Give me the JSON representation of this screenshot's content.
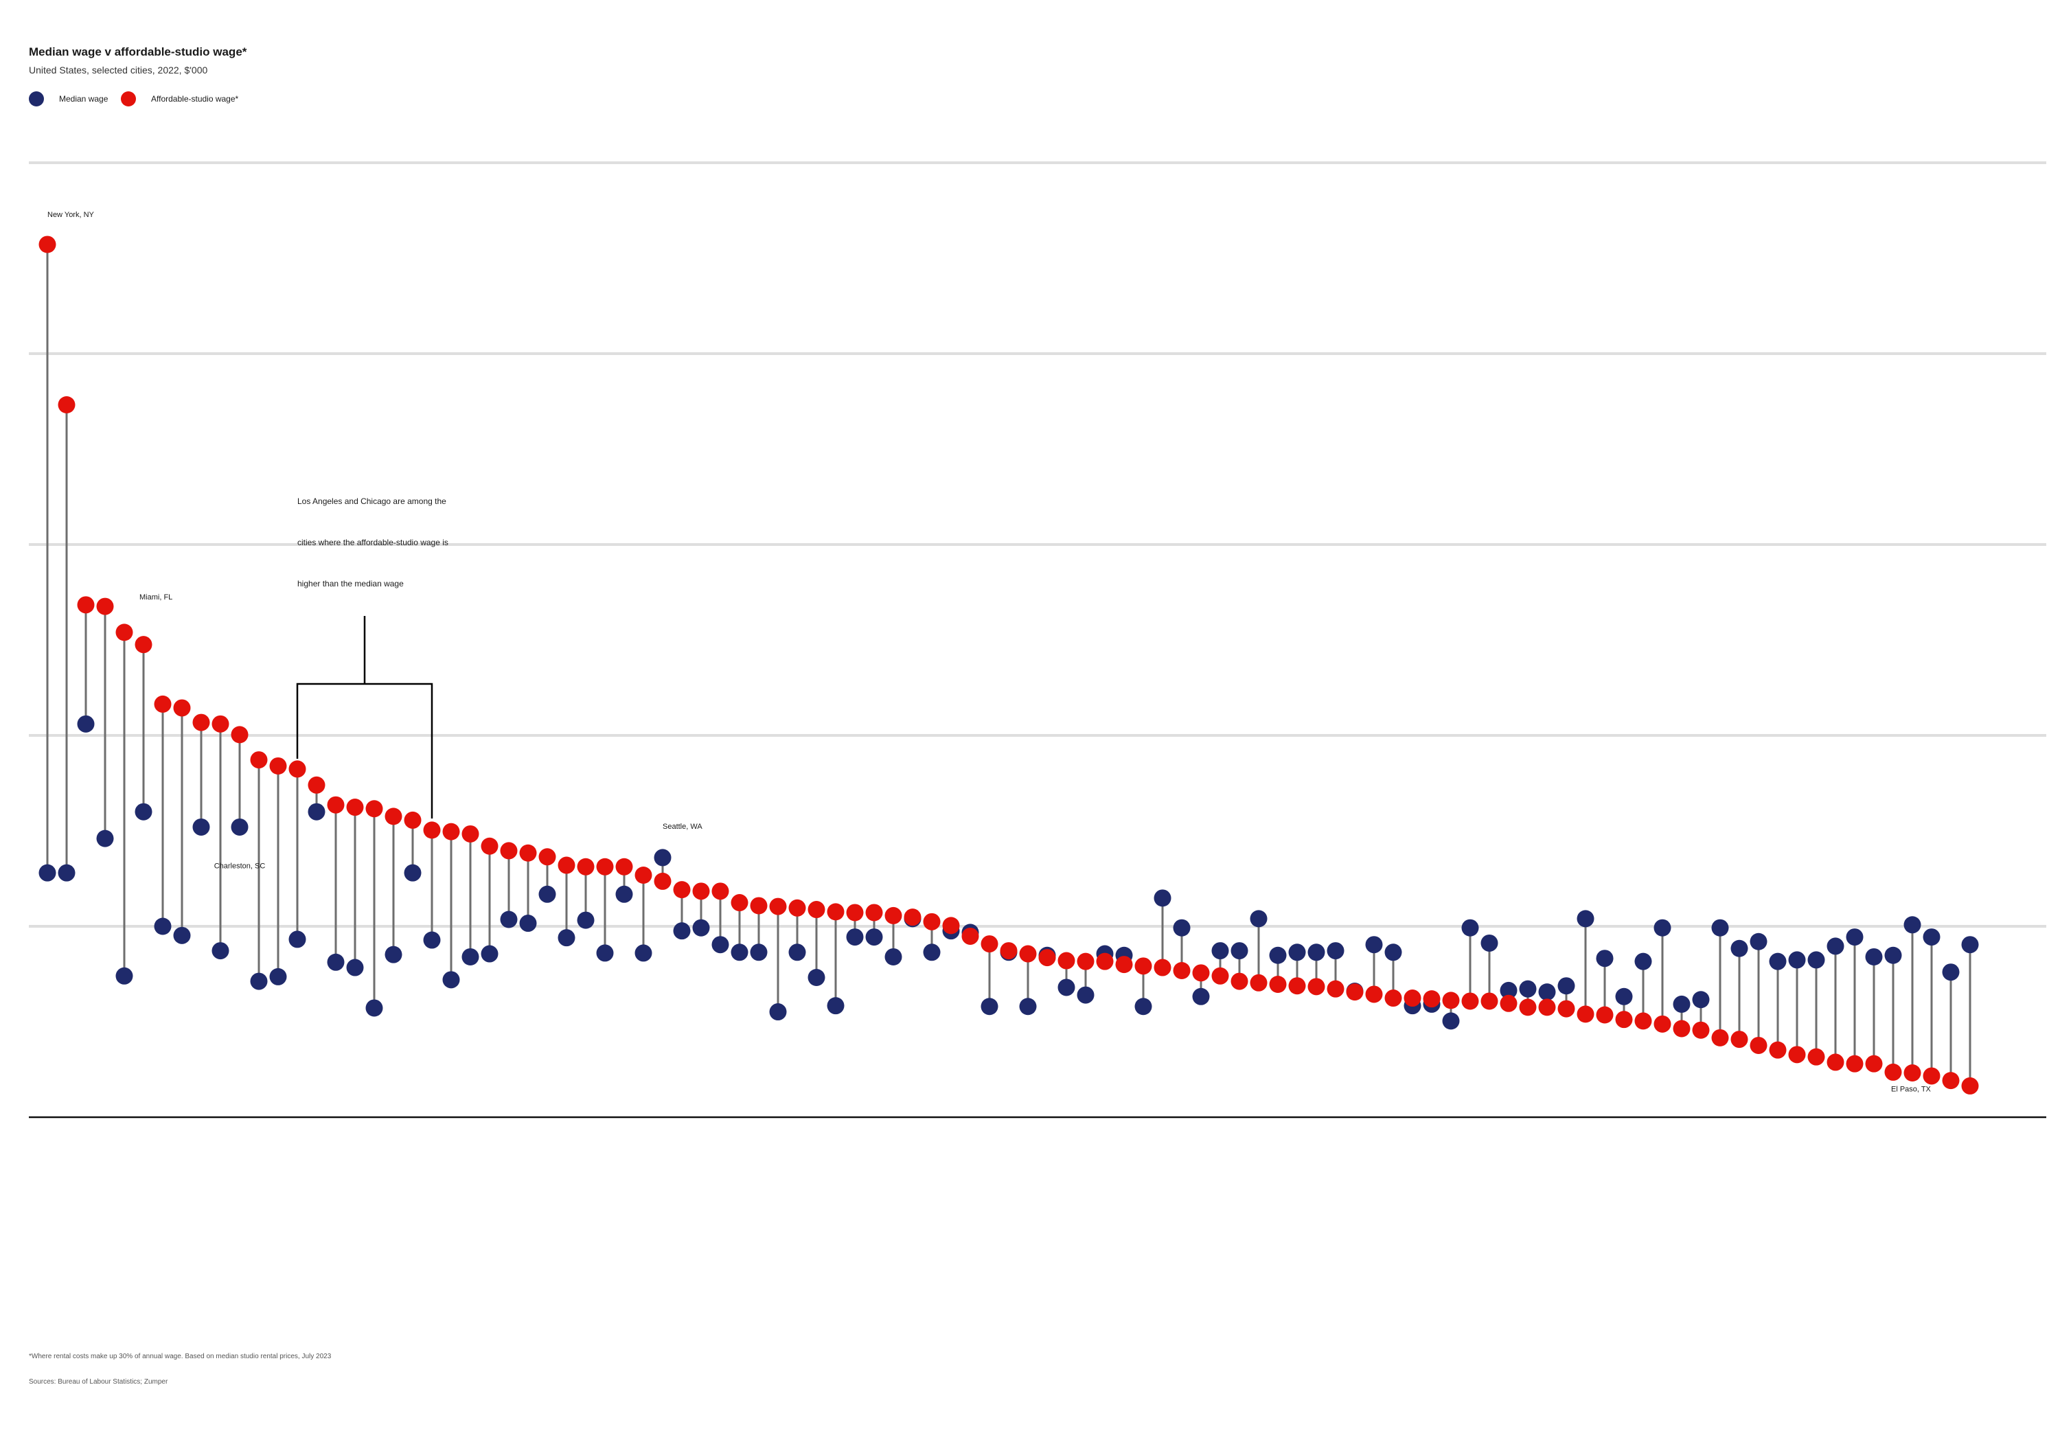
{
  "header": {
    "title": "Median wage v affordable-studio wage*",
    "subtitle": "United States, selected cities, 2022, $'000"
  },
  "legend": {
    "median": "Median wage",
    "affordable": "Affordable-studio wage*"
  },
  "colors": {
    "median": "#1f2a6b",
    "affordable": "#e3120b",
    "stem": "#6e6e6e",
    "grid": "#dedede",
    "baseline": "#111111"
  },
  "annotation": {
    "lines": [
      "Los Angeles and Chicago are among the",
      "cities where the affordable-studio wage is",
      "higher than the median wage"
    ]
  },
  "footnotes": {
    "note": "*Where rental costs make up 30% of annual wage. Based on median studio   rental prices, July 2023",
    "sources": "Sources: Bureau of Labour Statistics; Zumper"
  },
  "chart_data": {
    "type": "dot-plot",
    "y_gridlines": [
      0,
      25,
      50,
      75,
      100,
      125
    ],
    "ylim": [
      0,
      125
    ],
    "city_labels": [
      {
        "index": 0,
        "name": "New York, NY",
        "anchor": "affordable"
      },
      {
        "index": 4,
        "name": "Miami, FL",
        "anchor": "affordable"
      },
      {
        "index": 10,
        "name": "Charleston, SC",
        "anchor": "median"
      },
      {
        "index": 32,
        "name": "Seattle, WA",
        "anchor": "median"
      },
      {
        "index": 100,
        "name": "El Paso, TX",
        "anchor": "affordable"
      }
    ],
    "median_wage": [
      32.0,
      32.0,
      51.5,
      36.5,
      18.5,
      40.0,
      25.0,
      23.8,
      38.0,
      21.8,
      38.0,
      17.8,
      18.4,
      23.3,
      40.0,
      20.3,
      19.6,
      14.3,
      21.3,
      32.0,
      23.2,
      18.0,
      21.0,
      21.4,
      25.9,
      25.4,
      29.2,
      23.5,
      25.8,
      21.5,
      29.2,
      21.5,
      34.0,
      24.4,
      24.8,
      22.6,
      21.6,
      21.6,
      13.8,
      21.6,
      18.3,
      14.6,
      23.6,
      23.6,
      21.0,
      26.0,
      21.6,
      24.4,
      24.2,
      14.5,
      21.6,
      14.5,
      21.2,
      17.0,
      16.0,
      21.4,
      21.2,
      14.5,
      28.7,
      24.8,
      15.8,
      21.8,
      21.8,
      26.0,
      21.2,
      21.6,
      21.6,
      21.8,
      16.5,
      22.6,
      21.6,
      14.6,
      14.8,
      12.6,
      24.8,
      22.8,
      16.6,
      16.8,
      16.4,
      17.2,
      26.0,
      20.8,
      15.8,
      20.4,
      24.8,
      14.8,
      15.4,
      24.8,
      22.1,
      23.0,
      20.4,
      20.6,
      20.6,
      22.4,
      23.6,
      21.0,
      21.2,
      25.2,
      23.6,
      19.0,
      22.6
    ],
    "affordable_studio_wage": [
      114.3,
      93.3,
      67.1,
      66.9,
      63.5,
      61.9,
      54.1,
      53.6,
      51.7,
      51.5,
      50.1,
      46.8,
      46.0,
      45.6,
      43.5,
      40.9,
      40.6,
      40.4,
      39.4,
      38.9,
      37.6,
      37.4,
      37.1,
      35.5,
      34.9,
      34.6,
      34.1,
      33.0,
      32.8,
      32.8,
      32.8,
      31.7,
      30.9,
      29.8,
      29.6,
      29.6,
      28.1,
      27.7,
      27.6,
      27.4,
      27.2,
      26.9,
      26.8,
      26.8,
      26.4,
      26.2,
      25.6,
      25.1,
      23.7,
      22.7,
      21.8,
      21.4,
      20.9,
      20.5,
      20.4,
      20.4,
      20.0,
      19.8,
      19.6,
      19.2,
      18.9,
      18.5,
      17.8,
      17.6,
      17.4,
      17.2,
      17.1,
      16.8,
      16.4,
      16.1,
      15.6,
      15.6,
      15.5,
      15.3,
      15.2,
      15.2,
      14.9,
      14.4,
      14.4,
      14.2,
      13.5,
      13.4,
      12.8,
      12.6,
      12.2,
      11.6,
      11.4,
      10.4,
      10.2,
      9.4,
      8.8,
      8.2,
      7.9,
      7.2,
      7.0,
      7.0,
      5.9,
      5.8,
      5.4,
      4.8,
      4.1
    ]
  }
}
